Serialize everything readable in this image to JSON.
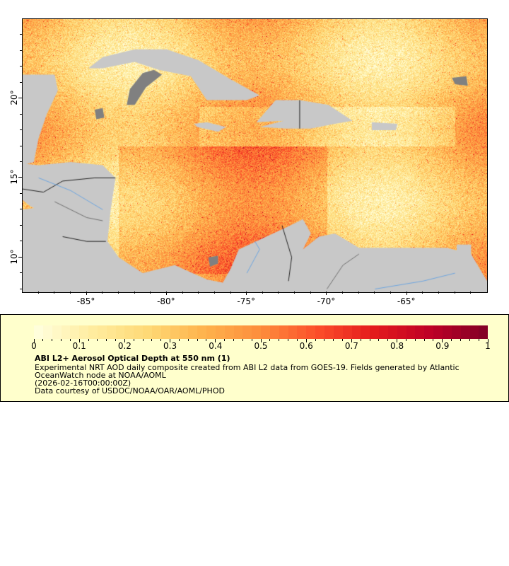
{
  "map": {
    "variable": "ABI L2+ Aerosol Optical Depth at 550 nm",
    "lon_range": [
      -89,
      -60
    ],
    "lat_range": [
      7.8,
      25
    ],
    "x_ticks": [
      {
        "value": -85,
        "label": "-85°"
      },
      {
        "value": -80,
        "label": "-80°"
      },
      {
        "value": -75,
        "label": "-75°"
      },
      {
        "value": -70,
        "label": "-70°"
      },
      {
        "value": -65,
        "label": "-65°"
      }
    ],
    "y_ticks": [
      {
        "value": 20,
        "label": "20°"
      },
      {
        "value": 15,
        "label": "15°"
      },
      {
        "value": 10,
        "label": "10°"
      }
    ],
    "land_color": "#c8c8c8",
    "nodata_color": "#808080",
    "river_color": "#6ea6e0",
    "border_color": "#707070"
  },
  "legend": {
    "colorbar": {
      "min": 0,
      "max": 1,
      "labels": [
        "0",
        "0.1",
        "0.2",
        "0.3",
        "0.4",
        "0.5",
        "0.6",
        "0.7",
        "0.8",
        "0.9",
        "1"
      ],
      "palette": [
        "#ffffe0",
        "#ffeda0",
        "#fed976",
        "#feb24c",
        "#fd8d3c",
        "#fc4e2a",
        "#e31a1c",
        "#bd0026",
        "#800026"
      ]
    },
    "title": "ABI L2+ Aerosol Optical Depth at 550 nm (1)",
    "description_line1": "Experimental NRT AOD daily composite created from ABI L2 data from GOES-19. Fields generated by Atlantic",
    "description_line2": "OceanWatch node at NOAA/AOML",
    "time": "(2026-02-16T00:00:00Z)",
    "credit": "Data courtesy of USDOC/NOAA/OAR/AOML/PHOD"
  }
}
